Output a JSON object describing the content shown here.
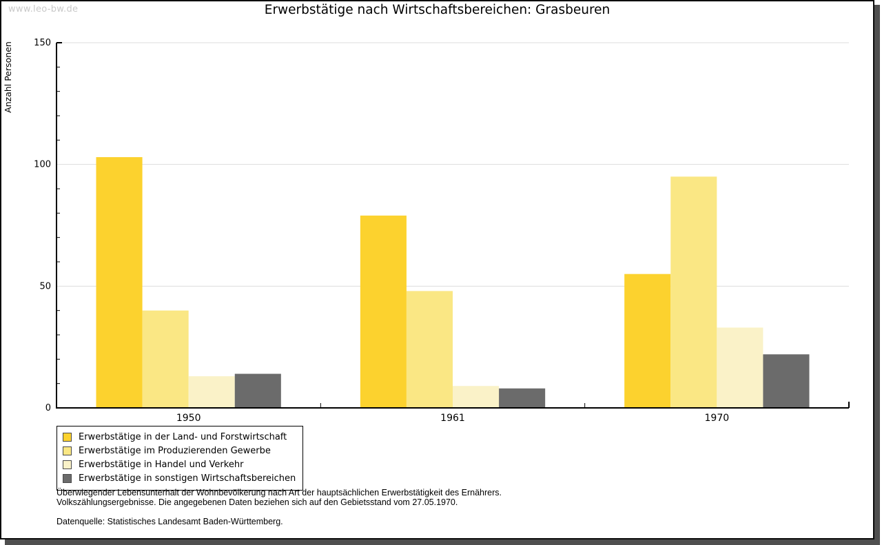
{
  "watermark": "www.leo-bw.de",
  "chart_data": {
    "type": "bar",
    "title": "Erwerbstätige nach Wirtschaftsbereichen: Grasbeuren",
    "ylabel": "Anzahl Personen",
    "xlabel": "",
    "ylim": [
      0,
      150
    ],
    "ytick_major": [
      0,
      50,
      100,
      150
    ],
    "ytick_minor_step": 10,
    "grid": "horizontal-major",
    "grid_color": "#DDDDDD",
    "axis_color": "#000000",
    "legend_position": "bottom-left",
    "categories": [
      "1950",
      "1961",
      "1970"
    ],
    "series": [
      {
        "name": "Erwerbstätige in der Land- und Forstwirtschaft",
        "color": "#FCD22E",
        "values": [
          103,
          79,
          55
        ]
      },
      {
        "name": "Erwerbstätige im Produzierenden Gewerbe",
        "color": "#FAE784",
        "values": [
          40,
          48,
          95
        ]
      },
      {
        "name": "Erwerbstätige in Handel und Verkehr",
        "color": "#FAF2C8",
        "values": [
          13,
          9,
          33
        ]
      },
      {
        "name": "Erwerbstätige in sonstigen Wirtschaftsbereichen",
        "color": "#6B6B6B",
        "values": [
          14,
          8,
          22
        ]
      }
    ]
  },
  "footnotes": {
    "line1": "Überwiegender Lebensunterhalt der Wohnbevölkerung nach Art der hauptsächlichen Erwerbstätigkeit des Ernährers.",
    "line2": "Volkszählungsergebnisse. Die angegebenen Daten beziehen sich auf den Gebietsstand vom 27.05.1970.",
    "source": "Datenquelle: Statistisches Landesamt Baden-Württemberg."
  }
}
